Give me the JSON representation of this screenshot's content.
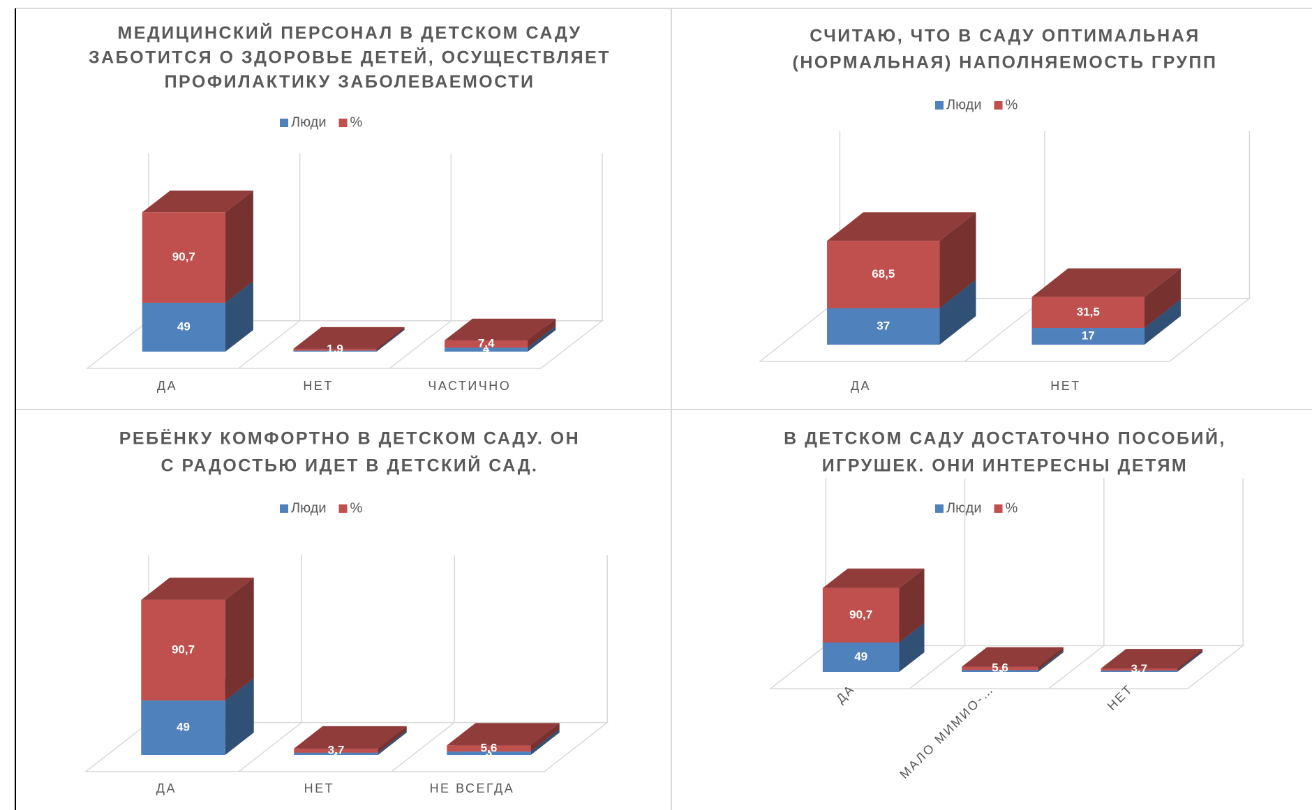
{
  "chart_data": [
    {
      "type": "bar3d_stacked",
      "title": [
        "МЕДИЦИНСКИЙ ПЕРСОНАЛ В ДЕТСКОМ САДУ",
        "ЗАБОТИТСЯ О ЗДОРОВЬЕ ДЕТЕЙ, ОСУЩЕСТВЛЯЕТ",
        "ПРОФИЛАКТИКУ ЗАБОЛЕВАЕМОСТИ"
      ],
      "categories": [
        "ДА",
        "НЕТ",
        "ЧАСТИЧНО"
      ],
      "series": [
        {
          "name": "Люди",
          "color": "#4f81bd",
          "values": [
            49,
            1,
            4
          ]
        },
        {
          "name": "%",
          "color": "#c0504d",
          "values": [
            90.7,
            1.9,
            7.4
          ],
          "value_labels": [
            "90,7",
            "1,9",
            "7,4"
          ]
        }
      ]
    },
    {
      "type": "bar3d_stacked",
      "title": [
        "СЧИТАЮ, ЧТО В САДУ ОПТИМАЛЬНАЯ",
        "(НОРМАЛЬНАЯ) НАПОЛНЯЕМОСТЬ ГРУПП"
      ],
      "categories": [
        "ДА",
        "НЕТ"
      ],
      "series": [
        {
          "name": "Люди",
          "color": "#4f81bd",
          "values": [
            37,
            17
          ]
        },
        {
          "name": "%",
          "color": "#c0504d",
          "values": [
            68.5,
            31.5
          ],
          "value_labels": [
            "68,5",
            "31,5"
          ]
        }
      ]
    },
    {
      "type": "bar3d_stacked",
      "title": [
        "РЕБЁНКУ КОМФОРТНО В ДЕТСКОМ САДУ. ОН",
        "С РАДОСТЬЮ ИДЕТ В ДЕТСКИЙ САД."
      ],
      "categories": [
        "ДА",
        "НЕТ",
        "НЕ ВСЕГДА"
      ],
      "series": [
        {
          "name": "Люди",
          "color": "#4f81bd",
          "values": [
            49,
            2,
            3
          ]
        },
        {
          "name": "%",
          "color": "#c0504d",
          "values": [
            90.7,
            3.7,
            5.6
          ],
          "value_labels": [
            "90,7",
            "3,7",
            "5,6"
          ]
        }
      ]
    },
    {
      "type": "bar3d_stacked",
      "title": [
        "В ДЕТСКОМ САДУ ДОСТАТОЧНО ПОСОБИЙ,",
        "ИГРУШЕК. ОНИ ИНТЕРЕСНЫ ДЕТЯМ"
      ],
      "categories": [
        "ДА",
        "МАЛО МИМИО-…",
        "НЕТ"
      ],
      "rotate_labels": true,
      "series": [
        {
          "name": "Люди",
          "color": "#4f81bd",
          "values": [
            49,
            3,
            2
          ]
        },
        {
          "name": "%",
          "color": "#c0504d",
          "values": [
            90.7,
            5.6,
            3.7
          ],
          "value_labels": [
            "90,7",
            "5,6",
            "3,7"
          ]
        }
      ]
    }
  ]
}
